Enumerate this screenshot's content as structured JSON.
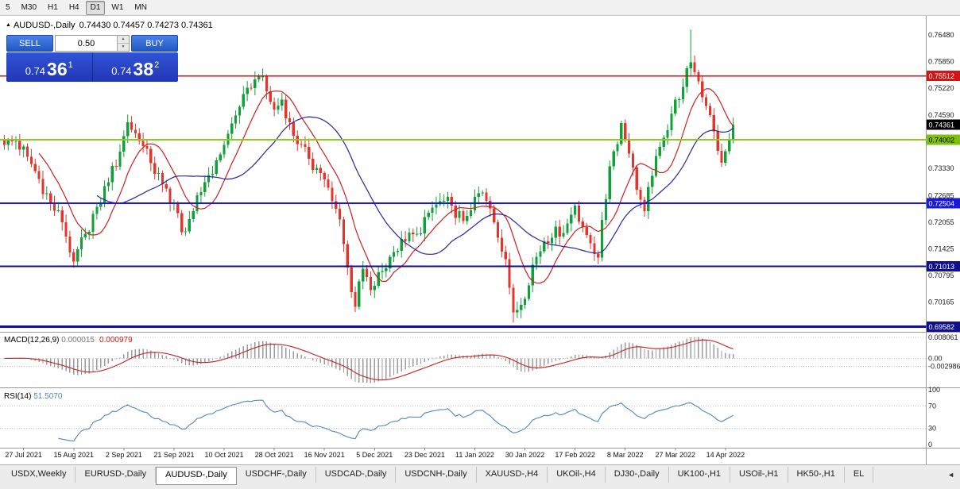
{
  "toolbar": {
    "timeframes": [
      "5",
      "M30",
      "H1",
      "H4",
      "D1",
      "W1",
      "MN"
    ],
    "active": "D1"
  },
  "chart_header": {
    "collapse_glyph": "▲",
    "symbol_title": "AUDUSD-,Daily",
    "ohlc": "0.74430 0.74457 0.74273 0.74361"
  },
  "trade_panel": {
    "sell_label": "SELL",
    "buy_label": "BUY",
    "lot_size": "0.50",
    "spin_up": "▲",
    "spin_down": "▼",
    "sell_price_small": "0.74",
    "sell_price_big": "36",
    "sell_price_sup": "1",
    "buy_price_small": "0.74",
    "buy_price_big": "38",
    "buy_price_sup": "2"
  },
  "tabs": {
    "items": [
      "USDX,Weekly",
      "EURUSD-,Daily",
      "AUDUSD-,Daily",
      "USDCHF-,Daily",
      "USDCAD-,Daily",
      "USDCNH-,Daily",
      "XAUUSD-,H4",
      "UKOil-,H4",
      "DJ30-,Daily",
      "UK100-,H1",
      "USOil-,H1",
      "HK50-,H1",
      "EL"
    ],
    "active_index": 2,
    "scroll_left_glyph": "◄"
  },
  "chart_data": {
    "type": "candlestick",
    "title": "AUDUSD-,Daily",
    "ohlc_header": "0.74430 0.74457 0.74273 0.74361",
    "bars": 190,
    "price_range": [
      0.695,
      0.7682
    ],
    "x_labels": [
      "27 Jul 2021",
      "15 Aug 2021",
      "2 Sep 2021",
      "21 Sep 2021",
      "10 Oct 2021",
      "28 Oct 2021",
      "16 Nov 2021",
      "5 Dec 2021",
      "23 Dec 2021",
      "11 Jan 2022",
      "30 Jan 2022",
      "17 Feb 2022",
      "8 Mar 2022",
      "27 Mar 2022",
      "14 Apr 2022"
    ],
    "label_start": 5,
    "label_step": 13,
    "y_tick_labels": [
      "0.76480",
      "0.75850",
      "0.75220",
      "0.74590",
      "0.73330",
      "0.72685",
      "0.72055",
      "0.71425",
      "0.70795",
      "0.70165"
    ],
    "badges": [
      {
        "text": "0.75512",
        "bg": "#d21414",
        "fg": "#ffffff"
      },
      {
        "text": "0.74361",
        "bg": "#000000",
        "fg": "#ffffff"
      },
      {
        "text": "0.74002",
        "bg": "#7fbf10",
        "fg": "#000000"
      },
      {
        "text": "0.72504",
        "bg": "#1a1ad6",
        "fg": "#ffffff"
      },
      {
        "text": "0.71013",
        "bg": "#10108c",
        "fg": "#ffffff"
      },
      {
        "text": "0.69582",
        "bg": "#10108c",
        "fg": "#ffffff"
      }
    ],
    "levels": [
      {
        "price": 0.75512,
        "color": "#d21414",
        "width": 1.3
      },
      {
        "price": 0.74002,
        "color": "#8ccb1e",
        "width": 2
      },
      {
        "price": 0.72504,
        "color": "#1a1ad6",
        "width": 1.8
      },
      {
        "price": 0.71013,
        "color": "#10108c",
        "width": 2
      },
      {
        "price": 0.69582,
        "color": "#10108c",
        "width": 3
      }
    ],
    "current_price": 0.74361,
    "anchors": [
      [
        0,
        0.7388
      ],
      [
        3,
        0.7398
      ],
      [
        6,
        0.736
      ],
      [
        9,
        0.7308
      ],
      [
        12,
        0.7252
      ],
      [
        15,
        0.7205
      ],
      [
        18,
        0.7112
      ],
      [
        21,
        0.7178
      ],
      [
        24,
        0.7242
      ],
      [
        27,
        0.73
      ],
      [
        30,
        0.7372
      ],
      [
        32,
        0.7442
      ],
      [
        35,
        0.7398
      ],
      [
        38,
        0.7345
      ],
      [
        41,
        0.7295
      ],
      [
        44,
        0.725
      ],
      [
        46,
        0.7182
      ],
      [
        49,
        0.7232
      ],
      [
        52,
        0.73
      ],
      [
        55,
        0.7352
      ],
      [
        58,
        0.7415
      ],
      [
        61,
        0.7478
      ],
      [
        64,
        0.7522
      ],
      [
        66,
        0.755
      ],
      [
        68,
        0.7515
      ],
      [
        70,
        0.7472
      ],
      [
        72,
        0.7495
      ],
      [
        74,
        0.7442
      ],
      [
        76,
        0.739
      ],
      [
        79,
        0.7355
      ],
      [
        82,
        0.7322
      ],
      [
        85,
        0.7255
      ],
      [
        87,
        0.7212
      ],
      [
        89,
        0.7098
      ],
      [
        91,
        0.7005
      ],
      [
        93,
        0.7095
      ],
      [
        95,
        0.7045
      ],
      [
        98,
        0.709
      ],
      [
        101,
        0.7135
      ],
      [
        104,
        0.716
      ],
      [
        107,
        0.7178
      ],
      [
        110,
        0.7228
      ],
      [
        113,
        0.7255
      ],
      [
        116,
        0.7245
      ],
      [
        119,
        0.7208
      ],
      [
        122,
        0.7265
      ],
      [
        124,
        0.7276
      ],
      [
        127,
        0.7205
      ],
      [
        130,
        0.7118
      ],
      [
        132,
        0.6992
      ],
      [
        134,
        0.701
      ],
      [
        137,
        0.7105
      ],
      [
        140,
        0.716
      ],
      [
        143,
        0.7195
      ],
      [
        145,
        0.718
      ],
      [
        148,
        0.7245
      ],
      [
        151,
        0.7175
      ],
      [
        154,
        0.7122
      ],
      [
        157,
        0.7338
      ],
      [
        160,
        0.744
      ],
      [
        162,
        0.7368
      ],
      [
        164,
        0.7282
      ],
      [
        166,
        0.7232
      ],
      [
        168,
        0.7315
      ],
      [
        171,
        0.7405
      ],
      [
        174,
        0.7495
      ],
      [
        176,
        0.7525
      ],
      [
        178,
        0.7583
      ],
      [
        180,
        0.7538
      ],
      [
        182,
        0.748
      ],
      [
        184,
        0.742
      ],
      [
        186,
        0.7346
      ],
      [
        188,
        0.74
      ],
      [
        189,
        0.74361
      ]
    ],
    "noise_amp": 0.0018,
    "wick_overrides": [
      {
        "index": 66,
        "high": 0.7556
      },
      {
        "index": 91,
        "low": 0.6993
      },
      {
        "index": 132,
        "low": 0.6968
      },
      {
        "index": 178,
        "high": 0.7661
      }
    ],
    "up_color": "#0fa138",
    "down_color": "#e5352b",
    "ma_fast": {
      "period": 10,
      "color": "#d01f1f"
    },
    "ma_slow": {
      "period": 25,
      "color": "#26269c"
    },
    "macd": {
      "label": "MACD(12,26,9)",
      "value1": "0.000015",
      "value2": "0.000979",
      "fast": 12,
      "slow": 26,
      "signal": 9,
      "tick_labels": [
        "0.008061",
        "0.00",
        "-0.002986"
      ],
      "hist_color": "#9b9b9b",
      "signal_color": "#c41f1f"
    },
    "rsi": {
      "label": "RSI(14)",
      "value": "51.5070",
      "period": 14,
      "color": "#4f86c0",
      "tick_labels": [
        "100",
        "70",
        "30",
        "0"
      ],
      "level_lines": [
        70,
        30
      ]
    }
  }
}
